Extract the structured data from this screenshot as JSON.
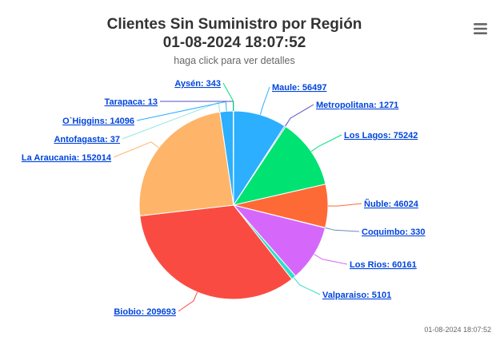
{
  "chart_data": {
    "type": "pie",
    "title": "Clientes Sin Suministro por Región",
    "title_line2": "01-08-2024 18:07:52",
    "subtitle": "haga click para ver detalles",
    "credit": "01-08-2024 18:07:52",
    "slices": [
      {
        "name": "Maule",
        "value": 56497,
        "label": "Maule: 56497",
        "color": "#2caffe",
        "side": "right"
      },
      {
        "name": "Metropolitana",
        "value": 1271,
        "label": "Metropolitana: 1271",
        "color": "#544fc5",
        "side": "right"
      },
      {
        "name": "Los Lagos",
        "value": 75242,
        "label": "Los Lagos: 75242",
        "color": "#00e272",
        "side": "right"
      },
      {
        "name": "Ñuble",
        "value": 46024,
        "label": "Ñuble: 46024",
        "color": "#fe6a35",
        "side": "right"
      },
      {
        "name": "Coquimbo",
        "value": 330,
        "label": "Coquimbo: 330",
        "color": "#6b8abc",
        "side": "right"
      },
      {
        "name": "Los Rios",
        "value": 60161,
        "label": "Los Rios: 60161",
        "color": "#d568fb",
        "side": "right"
      },
      {
        "name": "Valparaiso",
        "value": 5101,
        "label": "Valparaiso: 5101",
        "color": "#2ee0ca",
        "side": "right"
      },
      {
        "name": "Biobio",
        "value": 209693,
        "label": "Biobio: 209693",
        "color": "#fa4b42",
        "side": "left"
      },
      {
        "name": "La Araucania",
        "value": 152014,
        "label": "La Araucania: 152014",
        "color": "#feb56a",
        "side": "left"
      },
      {
        "name": "Antofagasta",
        "value": 37,
        "label": "Antofagasta: 37",
        "color": "#91e8e1",
        "side": "left"
      },
      {
        "name": "O`Higgins",
        "value": 14096,
        "label": "O`Higgins: 14096",
        "color": "#2caffe",
        "side": "left"
      },
      {
        "name": "Tarapaca",
        "value": 13,
        "label": "Tarapaca: 13",
        "color": "#544fc5",
        "side": "left"
      },
      {
        "name": "Aysén",
        "value": 343,
        "label": "Aysén: 343",
        "color": "#00e272",
        "side": "left"
      }
    ]
  },
  "menu": {
    "icon": "hamburger-menu-icon"
  }
}
